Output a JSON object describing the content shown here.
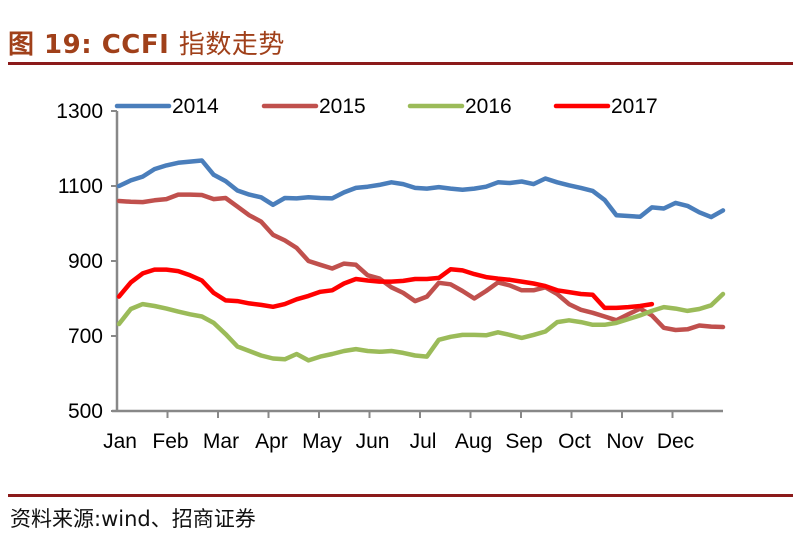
{
  "figure": {
    "number_label": "图 19:",
    "title_latin": "CCFI",
    "title_cn": "指数走势",
    "source": "资料来源:wind、招商证券"
  },
  "colors": {
    "title": "#a0401a",
    "rule": "#8b1a1a",
    "axis": "#888888",
    "s2014": "#4a7ebb",
    "s2015": "#c0504d",
    "s2016": "#9bbb59",
    "s2017": "#ff0000"
  },
  "chart_data": {
    "type": "line",
    "title": "CCFI 指数走势",
    "xlabel": "",
    "ylabel": "",
    "ylim": [
      500,
      1300
    ],
    "yticks": [
      500,
      700,
      900,
      1100,
      1300
    ],
    "ytick_labels": [
      "500",
      "700",
      "900",
      "1100",
      "1300"
    ],
    "categories": [
      "Jan",
      "Feb",
      "Mar",
      "Apr",
      "May",
      "Jun",
      "Jul",
      "Aug",
      "Sep",
      "Oct",
      "Nov",
      "Dec"
    ],
    "x_unit": "week (0-51)",
    "grid": false,
    "legend_position": "top",
    "series": [
      {
        "name": "2014",
        "color": "#4a7ebb",
        "values": [
          1100,
          1115,
          1125,
          1145,
          1155,
          1162,
          1165,
          1168,
          1130,
          1113,
          1088,
          1077,
          1070,
          1050,
          1068,
          1067,
          1070,
          1068,
          1067,
          1083,
          1095,
          1098,
          1103,
          1110,
          1105,
          1095,
          1093,
          1097,
          1093,
          1090,
          1093,
          1098,
          1110,
          1108,
          1112,
          1105,
          1120,
          1110,
          1102,
          1095,
          1087,
          1063,
          1022,
          1020,
          1018,
          1043,
          1040,
          1055,
          1047,
          1030,
          1017,
          1035
        ]
      },
      {
        "name": "2015",
        "color": "#c0504d",
        "values": [
          1060,
          1058,
          1057,
          1062,
          1065,
          1077,
          1077,
          1076,
          1065,
          1068,
          1045,
          1022,
          1005,
          970,
          955,
          935,
          900,
          890,
          880,
          893,
          890,
          862,
          853,
          830,
          815,
          793,
          805,
          842,
          838,
          820,
          800,
          820,
          843,
          835,
          822,
          822,
          830,
          812,
          785,
          770,
          762,
          752,
          742,
          758,
          773,
          755,
          722,
          716,
          718,
          728,
          725,
          724
        ]
      },
      {
        "name": "2016",
        "color": "#9bbb59",
        "values": [
          732,
          772,
          785,
          780,
          773,
          765,
          758,
          752,
          735,
          705,
          672,
          660,
          648,
          640,
          638,
          652,
          635,
          645,
          652,
          660,
          665,
          660,
          658,
          660,
          655,
          648,
          645,
          690,
          698,
          703,
          703,
          702,
          710,
          703,
          695,
          703,
          712,
          737,
          742,
          737,
          730,
          730,
          735,
          745,
          755,
          767,
          777,
          773,
          767,
          772,
          782,
          812
        ]
      },
      {
        "name": "2017",
        "color": "#ff0000",
        "values": [
          805,
          843,
          867,
          877,
          877,
          873,
          862,
          848,
          815,
          795,
          793,
          787,
          783,
          778,
          785,
          798,
          807,
          818,
          822,
          840,
          852,
          848,
          845,
          845,
          847,
          852,
          852,
          855,
          878,
          875,
          865,
          857,
          853,
          850,
          845,
          840,
          833,
          822,
          817,
          812,
          810,
          775,
          775,
          777,
          780,
          785,
          null,
          null,
          null,
          null,
          null,
          null
        ]
      }
    ]
  },
  "legend": [
    {
      "label": "2014"
    },
    {
      "label": "2015"
    },
    {
      "label": "2016"
    },
    {
      "label": "2017"
    }
  ]
}
